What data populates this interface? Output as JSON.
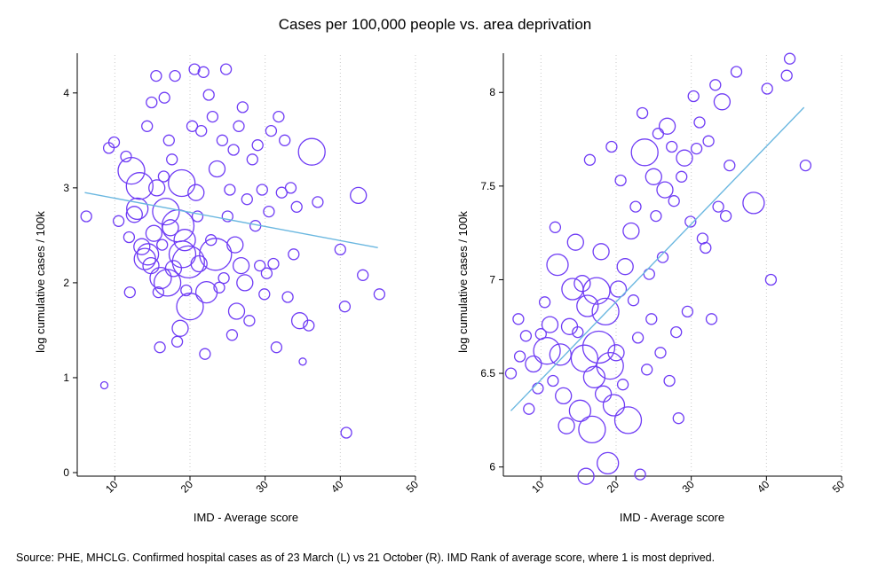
{
  "figure": {
    "title": "Cases per 100,000 people vs. area deprivation",
    "source": "Source: PHE, MHCLG.  Confirmed hospital cases as of 23 March (L) vs 21 October (R). IMD Rank of average score, where 1 is most deprived.",
    "colors": {
      "bubble": "#6f3cf5",
      "fit": "#6ab7e0"
    }
  },
  "chart_data": [
    {
      "type": "scatter",
      "xlabel": "IMD - Average score",
      "ylabel": "log cumulative cases / 100k",
      "xlim": [
        5,
        50
      ],
      "ylim": [
        0,
        4.4
      ],
      "x_ticks": [
        10,
        20,
        30,
        40,
        50
      ],
      "y_ticks": [
        0,
        1,
        2,
        3,
        4
      ],
      "x_tick_labels": [
        "10",
        "20",
        "30",
        "40",
        "50"
      ],
      "y_tick_labels": [
        "0",
        "1",
        "2",
        "3",
        "4"
      ],
      "grid": "vertical dotted",
      "fit_line": {
        "x": [
          6,
          45
        ],
        "y": [
          2.95,
          2.37
        ]
      },
      "points": [
        {
          "x": 6.2,
          "y": 2.7,
          "s": 2
        },
        {
          "x": 8.6,
          "y": 0.92,
          "s": 1
        },
        {
          "x": 9.2,
          "y": 3.42,
          "s": 2
        },
        {
          "x": 9.9,
          "y": 3.48,
          "s": 2
        },
        {
          "x": 10.5,
          "y": 2.65,
          "s": 2
        },
        {
          "x": 11.5,
          "y": 3.33,
          "s": 2
        },
        {
          "x": 11.9,
          "y": 2.48,
          "s": 2
        },
        {
          "x": 12.0,
          "y": 1.9,
          "s": 2
        },
        {
          "x": 12.2,
          "y": 3.18,
          "s": 5
        },
        {
          "x": 12.6,
          "y": 2.72,
          "s": 3
        },
        {
          "x": 13.0,
          "y": 2.78,
          "s": 4
        },
        {
          "x": 13.3,
          "y": 3.02,
          "s": 5
        },
        {
          "x": 13.6,
          "y": 2.38,
          "s": 3
        },
        {
          "x": 14.0,
          "y": 2.25,
          "s": 4
        },
        {
          "x": 14.3,
          "y": 3.65,
          "s": 2
        },
        {
          "x": 14.4,
          "y": 2.3,
          "s": 4
        },
        {
          "x": 14.8,
          "y": 2.18,
          "s": 3
        },
        {
          "x": 14.9,
          "y": 3.9,
          "s": 2
        },
        {
          "x": 15.2,
          "y": 2.52,
          "s": 3
        },
        {
          "x": 15.5,
          "y": 4.18,
          "s": 2
        },
        {
          "x": 15.6,
          "y": 3.0,
          "s": 3
        },
        {
          "x": 15.8,
          "y": 1.9,
          "s": 2
        },
        {
          "x": 16.0,
          "y": 1.32,
          "s": 2
        },
        {
          "x": 16.1,
          "y": 2.05,
          "s": 4
        },
        {
          "x": 16.3,
          "y": 2.4,
          "s": 2
        },
        {
          "x": 16.5,
          "y": 3.12,
          "s": 2
        },
        {
          "x": 16.6,
          "y": 3.95,
          "s": 2
        },
        {
          "x": 16.8,
          "y": 2.75,
          "s": 5
        },
        {
          "x": 17.0,
          "y": 2.0,
          "s": 5
        },
        {
          "x": 17.2,
          "y": 3.5,
          "s": 2
        },
        {
          "x": 17.4,
          "y": 2.58,
          "s": 3
        },
        {
          "x": 17.6,
          "y": 3.3,
          "s": 2
        },
        {
          "x": 17.8,
          "y": 2.15,
          "s": 3
        },
        {
          "x": 18.0,
          "y": 4.18,
          "s": 2
        },
        {
          "x": 18.3,
          "y": 1.38,
          "s": 2
        },
        {
          "x": 18.4,
          "y": 2.6,
          "s": 6
        },
        {
          "x": 18.7,
          "y": 1.52,
          "s": 3
        },
        {
          "x": 18.9,
          "y": 3.05,
          "s": 5
        },
        {
          "x": 19.0,
          "y": 2.3,
          "s": 5
        },
        {
          "x": 19.3,
          "y": 2.45,
          "s": 4
        },
        {
          "x": 19.5,
          "y": 1.92,
          "s": 2
        },
        {
          "x": 19.8,
          "y": 2.22,
          "s": 6
        },
        {
          "x": 20.0,
          "y": 1.75,
          "s": 5
        },
        {
          "x": 20.3,
          "y": 3.65,
          "s": 2
        },
        {
          "x": 20.6,
          "y": 4.25,
          "s": 2
        },
        {
          "x": 20.8,
          "y": 2.95,
          "s": 3
        },
        {
          "x": 21.0,
          "y": 2.7,
          "s": 2
        },
        {
          "x": 21.2,
          "y": 2.2,
          "s": 3
        },
        {
          "x": 21.5,
          "y": 3.6,
          "s": 2
        },
        {
          "x": 21.8,
          "y": 4.22,
          "s": 2
        },
        {
          "x": 22.0,
          "y": 1.25,
          "s": 2
        },
        {
          "x": 22.2,
          "y": 1.9,
          "s": 4
        },
        {
          "x": 22.5,
          "y": 3.98,
          "s": 2
        },
        {
          "x": 22.8,
          "y": 2.45,
          "s": 2
        },
        {
          "x": 23.0,
          "y": 3.75,
          "s": 2
        },
        {
          "x": 23.4,
          "y": 2.3,
          "s": 6
        },
        {
          "x": 23.6,
          "y": 3.2,
          "s": 3
        },
        {
          "x": 23.9,
          "y": 1.95,
          "s": 2
        },
        {
          "x": 24.3,
          "y": 3.5,
          "s": 2
        },
        {
          "x": 24.5,
          "y": 2.05,
          "s": 2
        },
        {
          "x": 24.8,
          "y": 4.25,
          "s": 2
        },
        {
          "x": 25.0,
          "y": 2.7,
          "s": 2
        },
        {
          "x": 25.3,
          "y": 2.98,
          "s": 2
        },
        {
          "x": 25.6,
          "y": 1.45,
          "s": 2
        },
        {
          "x": 25.8,
          "y": 3.4,
          "s": 2
        },
        {
          "x": 26.0,
          "y": 2.4,
          "s": 3
        },
        {
          "x": 26.2,
          "y": 1.7,
          "s": 3
        },
        {
          "x": 26.5,
          "y": 3.65,
          "s": 2
        },
        {
          "x": 26.8,
          "y": 2.18,
          "s": 3
        },
        {
          "x": 27.0,
          "y": 3.85,
          "s": 2
        },
        {
          "x": 27.3,
          "y": 2.0,
          "s": 3
        },
        {
          "x": 27.6,
          "y": 2.88,
          "s": 2
        },
        {
          "x": 27.9,
          "y": 1.6,
          "s": 2
        },
        {
          "x": 28.3,
          "y": 3.3,
          "s": 2
        },
        {
          "x": 28.7,
          "y": 2.6,
          "s": 2
        },
        {
          "x": 29.0,
          "y": 3.45,
          "s": 2
        },
        {
          "x": 29.3,
          "y": 2.18,
          "s": 2
        },
        {
          "x": 29.6,
          "y": 2.98,
          "s": 2
        },
        {
          "x": 29.9,
          "y": 1.88,
          "s": 2
        },
        {
          "x": 30.2,
          "y": 2.1,
          "s": 2
        },
        {
          "x": 30.5,
          "y": 2.75,
          "s": 2
        },
        {
          "x": 30.8,
          "y": 3.6,
          "s": 2
        },
        {
          "x": 31.1,
          "y": 2.2,
          "s": 2
        },
        {
          "x": 31.5,
          "y": 1.32,
          "s": 2
        },
        {
          "x": 31.8,
          "y": 3.75,
          "s": 2
        },
        {
          "x": 32.2,
          "y": 2.95,
          "s": 2
        },
        {
          "x": 32.6,
          "y": 3.5,
          "s": 2
        },
        {
          "x": 33.0,
          "y": 1.85,
          "s": 2
        },
        {
          "x": 33.4,
          "y": 3.0,
          "s": 2
        },
        {
          "x": 33.8,
          "y": 2.3,
          "s": 2
        },
        {
          "x": 34.2,
          "y": 2.8,
          "s": 2
        },
        {
          "x": 34.6,
          "y": 1.6,
          "s": 3
        },
        {
          "x": 35.0,
          "y": 1.17,
          "s": 1
        },
        {
          "x": 35.8,
          "y": 1.55,
          "s": 2
        },
        {
          "x": 36.2,
          "y": 3.38,
          "s": 5
        },
        {
          "x": 37.0,
          "y": 2.85,
          "s": 2
        },
        {
          "x": 40.0,
          "y": 2.35,
          "s": 2
        },
        {
          "x": 40.6,
          "y": 1.75,
          "s": 2
        },
        {
          "x": 40.8,
          "y": 0.42,
          "s": 2
        },
        {
          "x": 42.4,
          "y": 2.92,
          "s": 3
        },
        {
          "x": 43.0,
          "y": 2.08,
          "s": 2
        },
        {
          "x": 45.2,
          "y": 1.88,
          "s": 2
        }
      ]
    },
    {
      "type": "scatter",
      "xlabel": "IMD - Average score",
      "ylabel": "log cumulative cases / 100k",
      "xlim": [
        5,
        50
      ],
      "ylim": [
        5.97,
        8.2
      ],
      "x_ticks": [
        10,
        20,
        30,
        40,
        50
      ],
      "y_ticks": [
        6,
        6.5,
        7,
        7.5,
        8
      ],
      "x_tick_labels": [
        "10",
        "20",
        "30",
        "40",
        "50"
      ],
      "y_tick_labels": [
        "6",
        "6.5",
        "7",
        "7.5",
        "8"
      ],
      "grid": "vertical dotted",
      "fit_line": {
        "x": [
          6,
          45
        ],
        "y": [
          6.3,
          7.92
        ]
      },
      "points": [
        {
          "x": 6.0,
          "y": 6.5,
          "s": 2
        },
        {
          "x": 7.0,
          "y": 6.79,
          "s": 2
        },
        {
          "x": 7.2,
          "y": 6.59,
          "s": 2
        },
        {
          "x": 8.0,
          "y": 6.7,
          "s": 2
        },
        {
          "x": 8.4,
          "y": 6.31,
          "s": 2
        },
        {
          "x": 9.0,
          "y": 6.55,
          "s": 3
        },
        {
          "x": 9.6,
          "y": 6.42,
          "s": 2
        },
        {
          "x": 10.0,
          "y": 6.71,
          "s": 2
        },
        {
          "x": 10.5,
          "y": 6.88,
          "s": 2
        },
        {
          "x": 10.8,
          "y": 6.62,
          "s": 5
        },
        {
          "x": 11.2,
          "y": 6.76,
          "s": 3
        },
        {
          "x": 11.6,
          "y": 6.46,
          "s": 2
        },
        {
          "x": 11.9,
          "y": 7.28,
          "s": 2
        },
        {
          "x": 12.2,
          "y": 7.08,
          "s": 4
        },
        {
          "x": 12.6,
          "y": 6.6,
          "s": 4
        },
        {
          "x": 13.0,
          "y": 6.38,
          "s": 3
        },
        {
          "x": 13.4,
          "y": 6.22,
          "s": 3
        },
        {
          "x": 13.8,
          "y": 6.75,
          "s": 3
        },
        {
          "x": 14.2,
          "y": 6.95,
          "s": 4
        },
        {
          "x": 14.6,
          "y": 7.2,
          "s": 3
        },
        {
          "x": 14.9,
          "y": 6.72,
          "s": 2
        },
        {
          "x": 15.2,
          "y": 6.3,
          "s": 4
        },
        {
          "x": 15.5,
          "y": 6.98,
          "s": 3
        },
        {
          "x": 15.8,
          "y": 6.58,
          "s": 5
        },
        {
          "x": 16.0,
          "y": 5.95,
          "s": 3
        },
        {
          "x": 16.2,
          "y": 6.86,
          "s": 4
        },
        {
          "x": 16.5,
          "y": 7.64,
          "s": 2
        },
        {
          "x": 16.8,
          "y": 6.2,
          "s": 5
        },
        {
          "x": 17.1,
          "y": 6.48,
          "s": 4
        },
        {
          "x": 17.4,
          "y": 6.94,
          "s": 5
        },
        {
          "x": 17.7,
          "y": 6.64,
          "s": 6
        },
        {
          "x": 18.0,
          "y": 7.15,
          "s": 3
        },
        {
          "x": 18.3,
          "y": 6.39,
          "s": 3
        },
        {
          "x": 18.6,
          "y": 6.83,
          "s": 5
        },
        {
          "x": 18.9,
          "y": 6.02,
          "s": 4
        },
        {
          "x": 19.2,
          "y": 6.54,
          "s": 5
        },
        {
          "x": 19.4,
          "y": 7.71,
          "s": 2
        },
        {
          "x": 19.7,
          "y": 6.33,
          "s": 4
        },
        {
          "x": 20.0,
          "y": 6.61,
          "s": 3
        },
        {
          "x": 20.3,
          "y": 6.95,
          "s": 3
        },
        {
          "x": 20.6,
          "y": 7.53,
          "s": 2
        },
        {
          "x": 20.9,
          "y": 6.44,
          "s": 2
        },
        {
          "x": 21.2,
          "y": 7.07,
          "s": 3
        },
        {
          "x": 21.6,
          "y": 6.25,
          "s": 5
        },
        {
          "x": 22.0,
          "y": 7.26,
          "s": 3
        },
        {
          "x": 22.3,
          "y": 6.89,
          "s": 2
        },
        {
          "x": 22.6,
          "y": 7.39,
          "s": 2
        },
        {
          "x": 22.9,
          "y": 6.69,
          "s": 2
        },
        {
          "x": 23.2,
          "y": 5.96,
          "s": 2
        },
        {
          "x": 23.5,
          "y": 7.89,
          "s": 2
        },
        {
          "x": 23.8,
          "y": 7.68,
          "s": 5
        },
        {
          "x": 24.1,
          "y": 6.52,
          "s": 2
        },
        {
          "x": 24.4,
          "y": 7.03,
          "s": 2
        },
        {
          "x": 24.7,
          "y": 6.79,
          "s": 2
        },
        {
          "x": 25.0,
          "y": 7.55,
          "s": 3
        },
        {
          "x": 25.3,
          "y": 7.34,
          "s": 2
        },
        {
          "x": 25.6,
          "y": 7.78,
          "s": 2
        },
        {
          "x": 25.9,
          "y": 6.61,
          "s": 2
        },
        {
          "x": 26.2,
          "y": 7.12,
          "s": 2
        },
        {
          "x": 26.5,
          "y": 7.48,
          "s": 3
        },
        {
          "x": 26.8,
          "y": 7.82,
          "s": 3
        },
        {
          "x": 27.1,
          "y": 6.46,
          "s": 2
        },
        {
          "x": 27.4,
          "y": 7.71,
          "s": 2
        },
        {
          "x": 27.7,
          "y": 7.42,
          "s": 2
        },
        {
          "x": 28.0,
          "y": 6.72,
          "s": 2
        },
        {
          "x": 28.3,
          "y": 6.26,
          "s": 2
        },
        {
          "x": 28.7,
          "y": 7.55,
          "s": 2
        },
        {
          "x": 29.1,
          "y": 7.65,
          "s": 3
        },
        {
          "x": 29.5,
          "y": 6.83,
          "s": 2
        },
        {
          "x": 29.9,
          "y": 7.31,
          "s": 2
        },
        {
          "x": 30.3,
          "y": 7.98,
          "s": 2
        },
        {
          "x": 30.7,
          "y": 7.7,
          "s": 2
        },
        {
          "x": 31.1,
          "y": 7.84,
          "s": 2
        },
        {
          "x": 31.5,
          "y": 7.22,
          "s": 2
        },
        {
          "x": 31.9,
          "y": 7.17,
          "s": 2
        },
        {
          "x": 32.3,
          "y": 7.74,
          "s": 2
        },
        {
          "x": 32.7,
          "y": 6.79,
          "s": 2
        },
        {
          "x": 33.2,
          "y": 8.04,
          "s": 2
        },
        {
          "x": 33.6,
          "y": 7.39,
          "s": 2
        },
        {
          "x": 34.1,
          "y": 7.95,
          "s": 3
        },
        {
          "x": 34.6,
          "y": 7.34,
          "s": 2
        },
        {
          "x": 35.1,
          "y": 7.61,
          "s": 2
        },
        {
          "x": 36.0,
          "y": 8.11,
          "s": 2
        },
        {
          "x": 38.3,
          "y": 7.41,
          "s": 4
        },
        {
          "x": 40.1,
          "y": 8.02,
          "s": 2
        },
        {
          "x": 40.6,
          "y": 7.0,
          "s": 2
        },
        {
          "x": 42.7,
          "y": 8.09,
          "s": 2
        },
        {
          "x": 43.1,
          "y": 8.18,
          "s": 2
        },
        {
          "x": 45.2,
          "y": 7.61,
          "s": 2
        }
      ]
    }
  ]
}
